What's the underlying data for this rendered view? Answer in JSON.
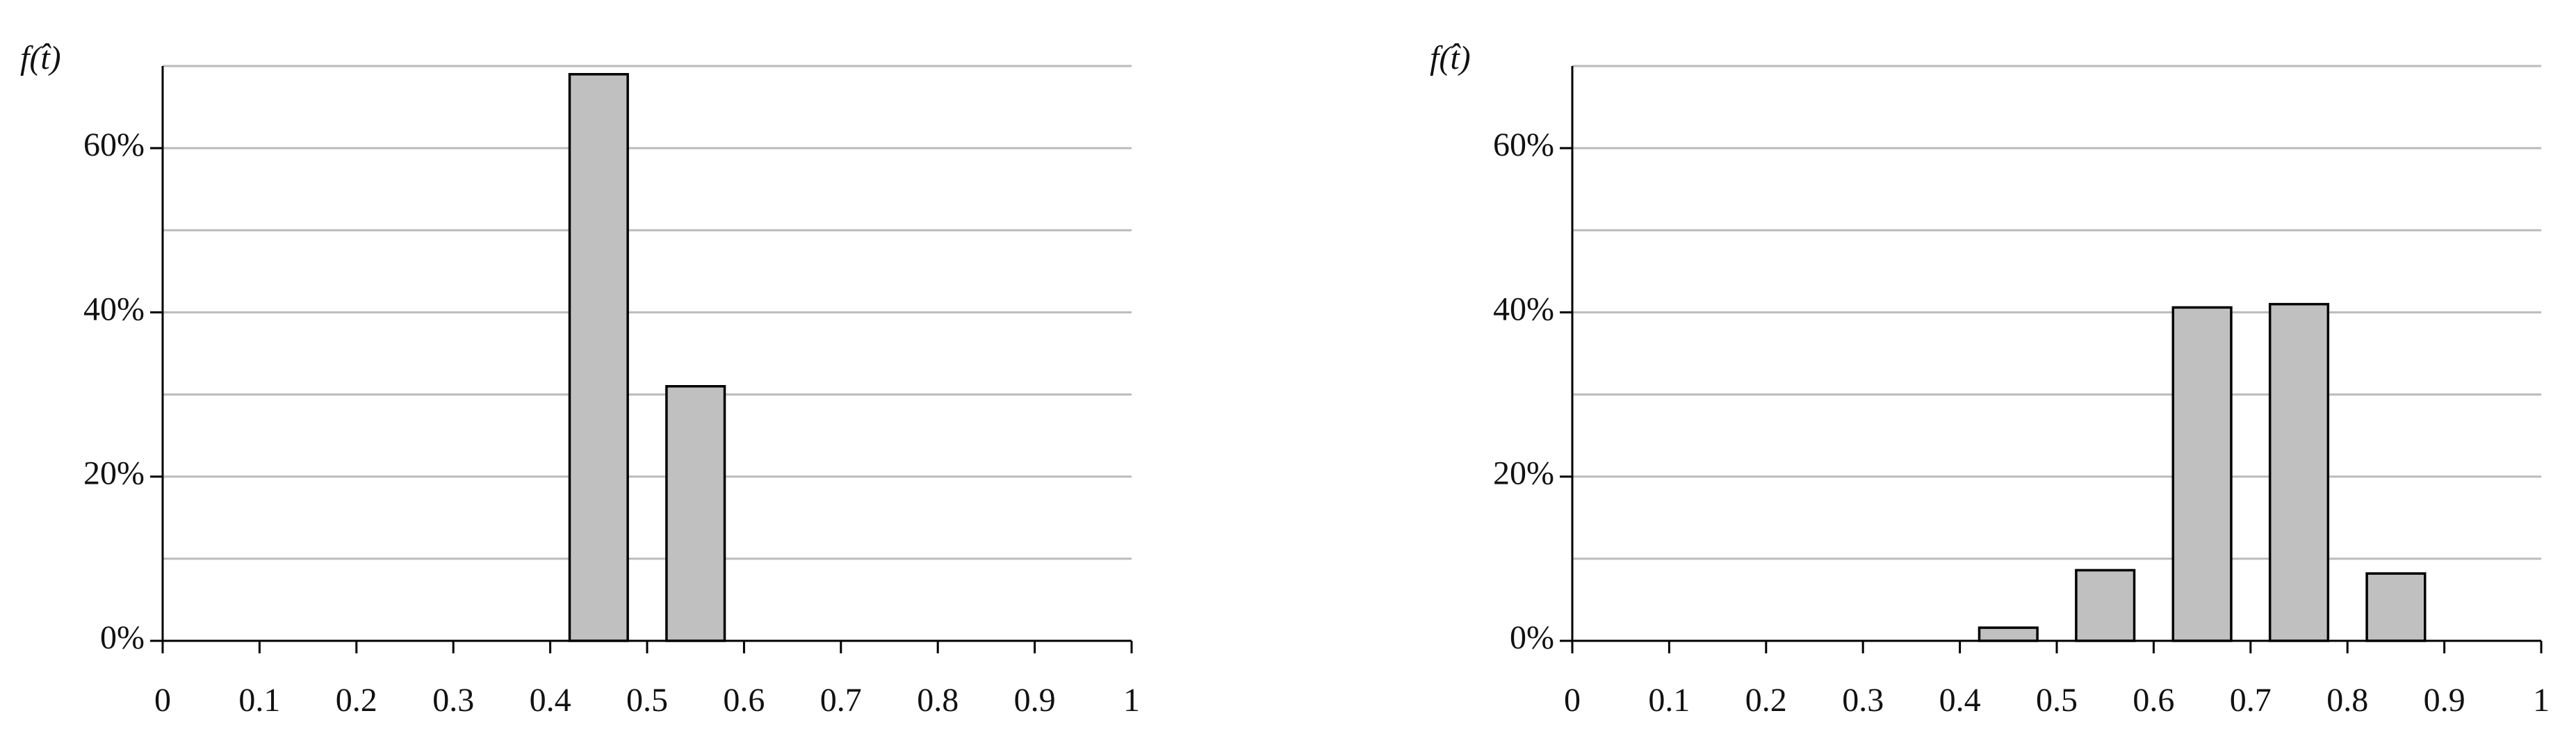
{
  "chart_data": [
    {
      "type": "histogram",
      "y_label": "f(t̂)",
      "bins": [
        0,
        0.1,
        0.2,
        0.3,
        0.4,
        0.5,
        0.6,
        0.7,
        0.8,
        0.9,
        1
      ],
      "counts": [
        0,
        0,
        0,
        0,
        69,
        31,
        0,
        0,
        0,
        0
      ],
      "color": "#c0c0c0",
      "xlim": [
        0,
        1
      ],
      "xticks": [
        0,
        0.1,
        0.2,
        0.3,
        0.4,
        0.5,
        0.6,
        0.7,
        0.8,
        0.9,
        1
      ],
      "ylim": [
        0,
        70
      ],
      "yticks": [
        {
          "value": 0,
          "label": "0%"
        },
        {
          "value": 20,
          "label": "20%"
        },
        {
          "value": 40,
          "label": "40%"
        },
        {
          "value": 60,
          "label": "60%"
        }
      ],
      "minor_yticks": [
        10,
        30,
        50,
        70
      ],
      "grid": true
    },
    {
      "type": "histogram",
      "y_label": "f(t̂)",
      "bins": [
        0,
        0.1,
        0.2,
        0.3,
        0.4,
        0.5,
        0.6,
        0.7,
        0.8,
        0.9,
        1
      ],
      "counts": [
        0,
        0,
        0,
        0,
        1.6,
        8.6,
        40.6,
        41,
        8.2,
        0
      ],
      "color": "#c0c0c0",
      "xlim": [
        0,
        1
      ],
      "xticks": [
        0,
        0.1,
        0.2,
        0.3,
        0.4,
        0.5,
        0.6,
        0.7,
        0.8,
        0.9,
        1
      ],
      "ylim": [
        0,
        70
      ],
      "yticks": [
        {
          "value": 0,
          "label": "0%"
        },
        {
          "value": 20,
          "label": "20%"
        },
        {
          "value": 40,
          "label": "40%"
        },
        {
          "value": 60,
          "label": "60%"
        }
      ],
      "minor_yticks": [
        10,
        30,
        50,
        70
      ],
      "grid": true
    }
  ]
}
